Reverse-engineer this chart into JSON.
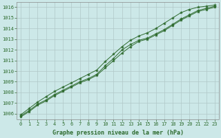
{
  "x": [
    0,
    1,
    2,
    3,
    4,
    5,
    6,
    7,
    8,
    9,
    10,
    11,
    12,
    13,
    14,
    15,
    16,
    17,
    18,
    19,
    20,
    21,
    22,
    23
  ],
  "line1": [
    1005.8,
    1006.3,
    1006.9,
    1007.3,
    1007.8,
    1008.2,
    1008.6,
    1009.0,
    1009.3,
    1009.7,
    1010.5,
    1011.2,
    1012.0,
    1012.5,
    1012.9,
    1013.1,
    1013.5,
    1013.9,
    1014.4,
    1014.9,
    1015.3,
    1015.7,
    1015.9,
    1016.1
  ],
  "line2": [
    1005.9,
    1006.5,
    1007.1,
    1007.6,
    1008.1,
    1008.5,
    1008.9,
    1009.3,
    1009.7,
    1010.1,
    1010.9,
    1011.6,
    1012.3,
    1012.9,
    1013.3,
    1013.6,
    1014.0,
    1014.5,
    1015.0,
    1015.5,
    1015.8,
    1016.0,
    1016.1,
    1016.2
  ],
  "line3": [
    1005.7,
    1006.2,
    1006.8,
    1007.2,
    1007.7,
    1008.1,
    1008.5,
    1008.9,
    1009.2,
    1009.6,
    1010.3,
    1011.0,
    1011.7,
    1012.3,
    1012.8,
    1013.0,
    1013.4,
    1013.8,
    1014.3,
    1014.8,
    1015.2,
    1015.6,
    1015.8,
    1016.0
  ],
  "line_color": "#2d6a2d",
  "marker_color": "#2d6a2d",
  "background_color": "#cce8e8",
  "grid_color": "#b0c8c8",
  "xlabel": "Graphe pression niveau de la mer (hPa)",
  "xlim": [
    -0.5,
    23.5
  ],
  "ylim": [
    1005.5,
    1016.5
  ],
  "yticks": [
    1006,
    1007,
    1008,
    1009,
    1010,
    1011,
    1012,
    1013,
    1014,
    1015,
    1016
  ],
  "xticks": [
    0,
    1,
    2,
    3,
    4,
    5,
    6,
    7,
    8,
    9,
    10,
    11,
    12,
    13,
    14,
    15,
    16,
    17,
    18,
    19,
    20,
    21,
    22,
    23
  ],
  "tick_fontsize": 5.0,
  "label_fontsize": 6.0,
  "label_color": "#2d6a2d",
  "spine_color": "#888888"
}
